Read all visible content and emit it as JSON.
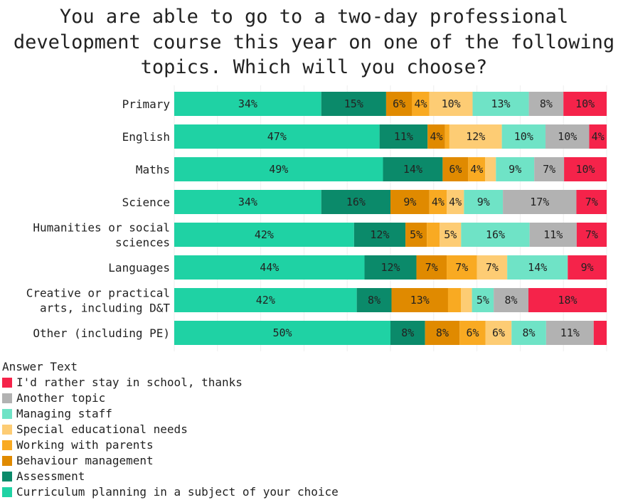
{
  "title": "You are able to go to a two-day professional development course this year on one of the following topics. Which will you choose?",
  "legend_title": "Answer Text",
  "legend": [
    {
      "label": "I'd rather stay in school, thanks",
      "color": "#f5234a"
    },
    {
      "label": "Another topic",
      "color": "#b2b2b2"
    },
    {
      "label": "Managing staff",
      "color": "#6fe3c6"
    },
    {
      "label": "Special educational needs",
      "color": "#fdcc74"
    },
    {
      "label": "Working with parents",
      "color": "#f9aa22"
    },
    {
      "label": "Behaviour management",
      "color": "#e08a00"
    },
    {
      "label": "Assessment",
      "color": "#0b8a6a"
    },
    {
      "label": "Curriculum planning in a subject of your choice",
      "color": "#1fd2a4"
    }
  ],
  "chart_data": {
    "type": "bar",
    "orientation": "horizontal",
    "stacked": "percent",
    "categories": [
      "Primary",
      "English",
      "Maths",
      "Science",
      "Humanities or social sciences",
      "Languages",
      "Creative or practical arts, including D&T",
      "Other (including PE)"
    ],
    "category_lines": [
      [
        "Primary"
      ],
      [
        "English"
      ],
      [
        "Maths"
      ],
      [
        "Science"
      ],
      [
        "Humanities or social",
        "sciences"
      ],
      [
        "Languages"
      ],
      [
        "Creative or practical",
        "arts, including D&T"
      ],
      [
        "Other (including PE)"
      ]
    ],
    "series": [
      {
        "name": "Curriculum planning in a subject of your choice",
        "color": "#1fd2a4",
        "values": [
          34,
          47,
          49,
          34,
          42,
          44,
          42,
          50
        ],
        "labels": [
          "34%",
          "47%",
          "49%",
          "34%",
          "42%",
          "44%",
          "42%",
          "50%"
        ]
      },
      {
        "name": "Assessment",
        "color": "#0b8a6a",
        "values": [
          15,
          11,
          14,
          16,
          12,
          12,
          8,
          8
        ],
        "labels": [
          "15%",
          "11%",
          "14%",
          "16%",
          "12%",
          "12%",
          "8%",
          "8%"
        ]
      },
      {
        "name": "Behaviour management",
        "color": "#e08a00",
        "values": [
          6,
          4,
          6,
          9,
          5,
          7,
          13,
          8
        ],
        "labels": [
          "6%",
          "4%",
          "6%",
          "9%",
          "5%",
          "7%",
          "13%",
          "8%"
        ]
      },
      {
        "name": "Working with parents",
        "color": "#f9aa22",
        "values": [
          4,
          1,
          4,
          4,
          3,
          7,
          3,
          6
        ],
        "labels": [
          "4%",
          "",
          "4%",
          "4%",
          "",
          "7%",
          "",
          "6%"
        ]
      },
      {
        "name": "Special educational needs",
        "color": "#fdcc74",
        "values": [
          10,
          12,
          2.5,
          4,
          5,
          7,
          2.5,
          6
        ],
        "labels": [
          "10%",
          "12%",
          "",
          "4%",
          "5%",
          "7%",
          "",
          "6%"
        ]
      },
      {
        "name": "Managing staff",
        "color": "#6fe3c6",
        "values": [
          13,
          10,
          9,
          9,
          16,
          14,
          5,
          8
        ],
        "labels": [
          "13%",
          "10%",
          "9%",
          "9%",
          "16%",
          "14%",
          "5%",
          "8%"
        ]
      },
      {
        "name": "Another topic",
        "color": "#b2b2b2",
        "values": [
          8,
          10,
          7,
          17,
          11,
          0,
          8,
          11
        ],
        "labels": [
          "8%",
          "10%",
          "7%",
          "17%",
          "11%",
          "",
          "8%",
          "11%"
        ]
      },
      {
        "name": "I'd rather stay in school, thanks",
        "color": "#f5234a",
        "values": [
          10,
          4,
          10,
          7,
          7,
          9,
          18,
          3
        ],
        "labels": [
          "10%",
          "4%",
          "10%",
          "7%",
          "7%",
          "9%",
          "18%",
          ""
        ]
      }
    ],
    "xlim": [
      0,
      100
    ],
    "grid": true,
    "legend_position": "bottom-left"
  }
}
